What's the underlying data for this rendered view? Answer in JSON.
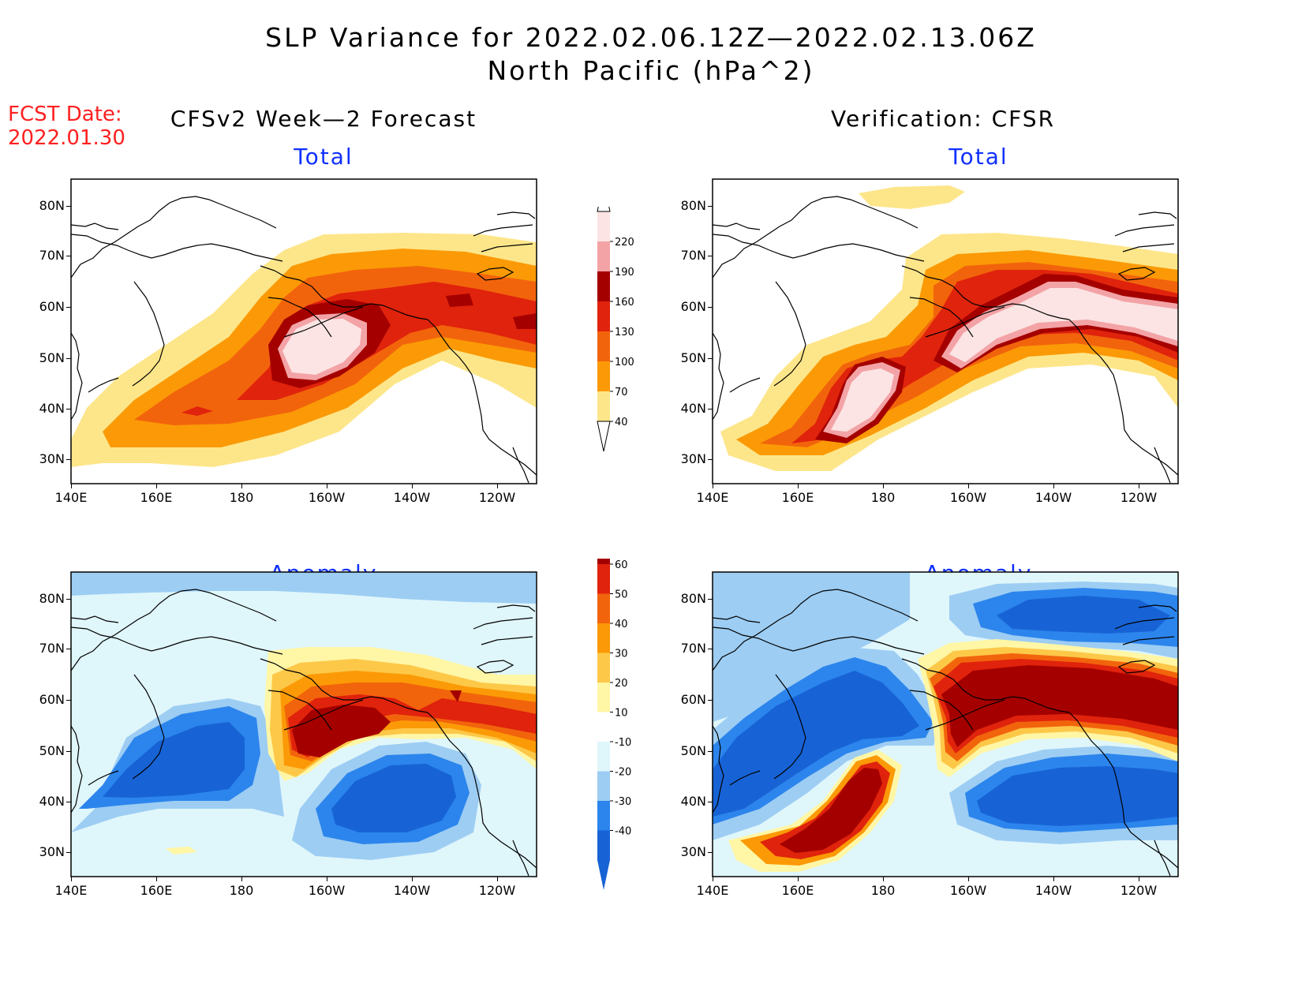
{
  "title": {
    "line1": "SLP Variance for 2022.02.06.12Z—2022.02.13.06Z",
    "line2": "North Pacific (hPa^2)"
  },
  "fcst": {
    "label": "FCST Date:",
    "date": "2022.01.30"
  },
  "columns": {
    "left": "CFSv2 Week—2 Forecast",
    "right": "Verification: CFSR"
  },
  "panel_titles": {
    "total": "Total",
    "anomaly": "Anomaly"
  },
  "axes": {
    "lon_labels": [
      "140E",
      "160E",
      "180",
      "160W",
      "140W",
      "120W"
    ],
    "lat_labels": [
      "80N",
      "70N",
      "60N",
      "50N",
      "40N",
      "30N"
    ]
  },
  "colorbars": {
    "total": {
      "labels": [
        "40",
        "70",
        "100",
        "130",
        "160",
        "190",
        "220"
      ],
      "colors": [
        "#fde68a",
        "#fb9a06",
        "#f2640c",
        "#e0230c",
        "#a50000",
        "#f3a3a6",
        "#fce4e4"
      ]
    },
    "anomaly": {
      "labels": [
        "-40",
        "-30",
        "-20",
        "-10",
        "10",
        "20",
        "30",
        "40",
        "50",
        "60"
      ],
      "colors": [
        "#1763d6",
        "#2c85ec",
        "#9dcdf3",
        "#dff6fb",
        "#ffffff",
        "#fff6a6",
        "#fdc848",
        "#fb9a06",
        "#f2640c",
        "#e0230c",
        "#a50000"
      ]
    }
  },
  "palette": {
    "ocean": "#ffffff",
    "coast": "#000000",
    "title_blue": "#1030ff",
    "fcst_red": "#ff2020"
  }
}
